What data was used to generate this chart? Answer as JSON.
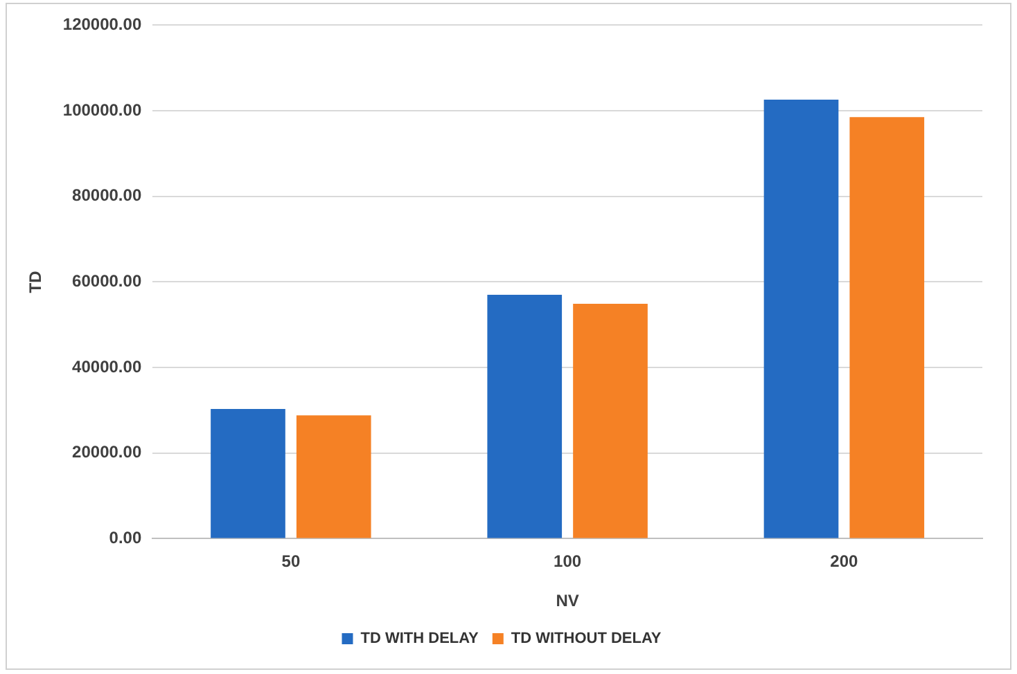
{
  "chart_data": {
    "type": "bar",
    "xlabel": "NV",
    "ylabel": "TD",
    "categories": [
      "50",
      "100",
      "200"
    ],
    "series": [
      {
        "name": "TD WITH DELAY",
        "color": "#246bc2",
        "values": [
          30300,
          57000,
          102600
        ]
      },
      {
        "name": "TD WITHOUT DELAY",
        "color": "#f58125",
        "values": [
          28800,
          54900,
          98500
        ]
      }
    ],
    "ylim": [
      0,
      120000
    ],
    "yticks": [
      {
        "value": 0,
        "label": "0.00"
      },
      {
        "value": 20000,
        "label": "20000.00"
      },
      {
        "value": 40000,
        "label": "40000.00"
      },
      {
        "value": 60000,
        "label": "60000.00"
      },
      {
        "value": 80000,
        "label": "80000.00"
      },
      {
        "value": 100000,
        "label": "100000.00"
      },
      {
        "value": 120000,
        "label": "120000.00"
      }
    ],
    "grid": "y",
    "legend": "bottom"
  }
}
